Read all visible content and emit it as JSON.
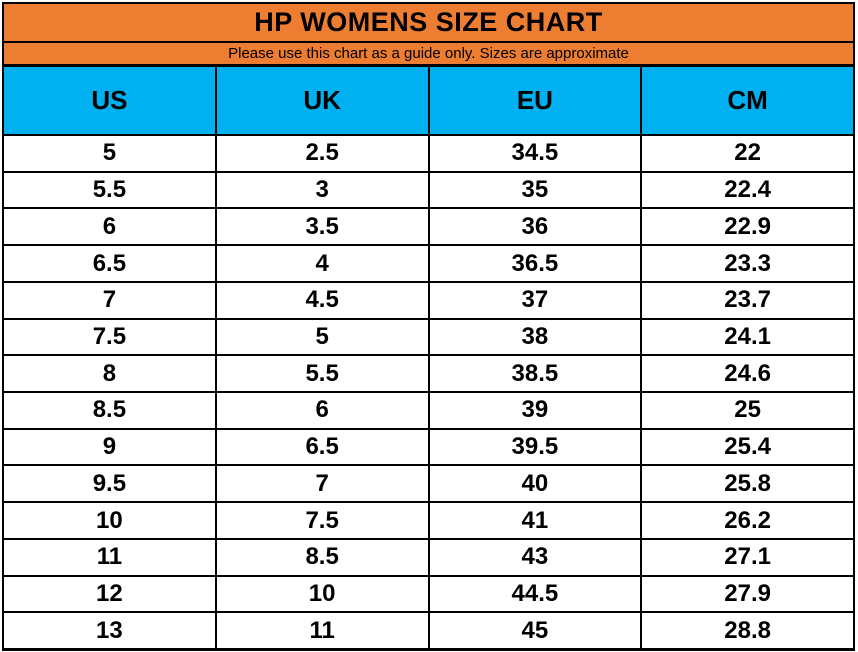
{
  "title": "HP WOMENS SIZE CHART",
  "subtitle": "Please use this chart as a guide only. Sizes are approximate",
  "colors": {
    "orange_band": "#ED7D31",
    "blue_header": "#00B0F0",
    "grid_border": "#000000",
    "row_background": "#FFFFFF",
    "text": "#000000"
  },
  "chart_data": {
    "type": "table",
    "title": "HP WOMENS SIZE CHART",
    "subtitle": "Please use this chart as a guide only. Sizes are approximate",
    "columns": [
      "US",
      "UK",
      "EU",
      "CM"
    ],
    "rows": [
      [
        "5",
        "2.5",
        "34.5",
        "22"
      ],
      [
        "5.5",
        "3",
        "35",
        "22.4"
      ],
      [
        "6",
        "3.5",
        "36",
        "22.9"
      ],
      [
        "6.5",
        "4",
        "36.5",
        "23.3"
      ],
      [
        "7",
        "4.5",
        "37",
        "23.7"
      ],
      [
        "7.5",
        "5",
        "38",
        "24.1"
      ],
      [
        "8",
        "5.5",
        "38.5",
        "24.6"
      ],
      [
        "8.5",
        "6",
        "39",
        "25"
      ],
      [
        "9",
        "6.5",
        "39.5",
        "25.4"
      ],
      [
        "9.5",
        "7",
        "40",
        "25.8"
      ],
      [
        "10",
        "7.5",
        "41",
        "26.2"
      ],
      [
        "11",
        "8.5",
        "43",
        "27.1"
      ],
      [
        "12",
        "10",
        "44.5",
        "27.9"
      ],
      [
        "13",
        "11",
        "45",
        "28.8"
      ]
    ]
  }
}
